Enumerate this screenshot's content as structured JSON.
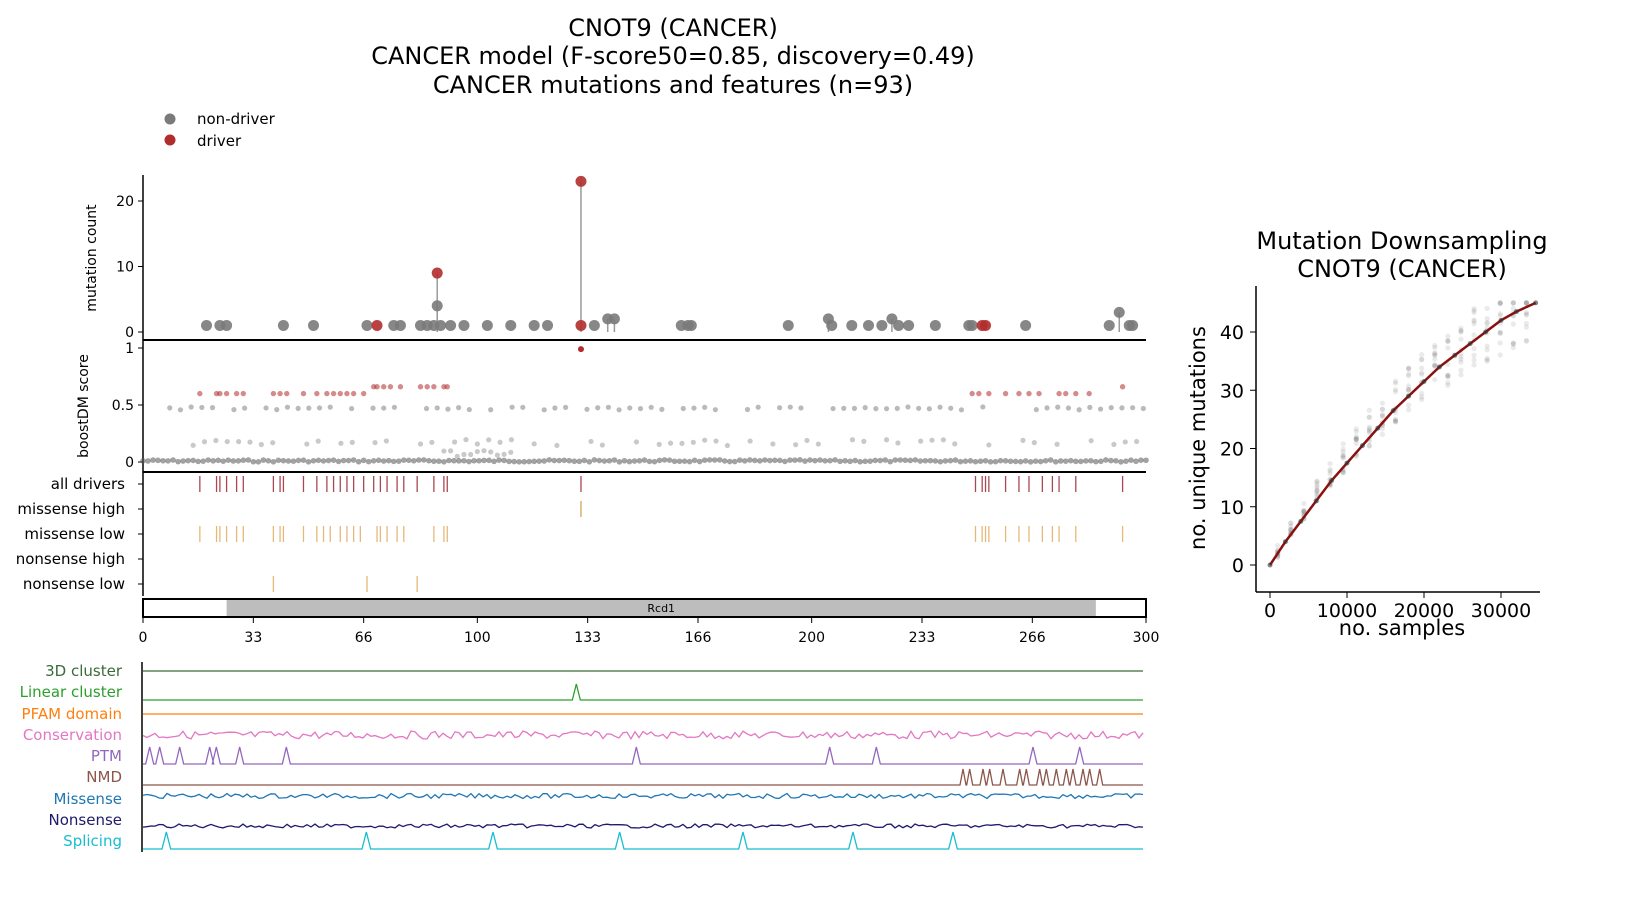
{
  "title": {
    "line1": "CNOT9 (CANCER)",
    "line2": "CANCER model (F-score50=0.85, discovery=0.49)",
    "line3": "CANCER mutations and features (n=93)"
  },
  "legend": {
    "items": [
      {
        "label": "non-driver",
        "color": "#7a7a7a"
      },
      {
        "label": "driver",
        "color": "#b22c2c"
      }
    ]
  },
  "colors": {
    "non_driver": "#7a7a7a",
    "driver": "#b22c2c",
    "stem": "#9a9a9a",
    "driver_tick": "#a8494f",
    "missense_high": "#d4a35e",
    "missense_low": "#e6b87a",
    "nonsense_low": "#e6b87a",
    "domain_fill": "#bdbdbd",
    "downsample_line": "#8b1010"
  },
  "chart_data": [
    {
      "type": "scatter",
      "name": "mutation-lollipop",
      "ylabel": "mutation count",
      "xlim": [
        0,
        300
      ],
      "ylim": [
        0,
        24
      ],
      "yticks": [
        0,
        10,
        20
      ],
      "points": [
        {
          "x": 19,
          "y": 1,
          "driver": false
        },
        {
          "x": 23,
          "y": 1,
          "driver": false
        },
        {
          "x": 25,
          "y": 1,
          "driver": false
        },
        {
          "x": 42,
          "y": 1,
          "driver": false
        },
        {
          "x": 51,
          "y": 1,
          "driver": false
        },
        {
          "x": 67,
          "y": 1,
          "driver": false
        },
        {
          "x": 70,
          "y": 1,
          "driver": true
        },
        {
          "x": 75,
          "y": 1,
          "driver": false
        },
        {
          "x": 77,
          "y": 1,
          "driver": false
        },
        {
          "x": 83,
          "y": 1,
          "driver": false
        },
        {
          "x": 85,
          "y": 1,
          "driver": false
        },
        {
          "x": 87,
          "y": 1,
          "driver": false
        },
        {
          "x": 88,
          "y": 9,
          "driver": true
        },
        {
          "x": 88,
          "y": 4,
          "driver": false
        },
        {
          "x": 89,
          "y": 1,
          "driver": false
        },
        {
          "x": 92,
          "y": 1,
          "driver": false
        },
        {
          "x": 96,
          "y": 1,
          "driver": false
        },
        {
          "x": 103,
          "y": 1,
          "driver": false
        },
        {
          "x": 110,
          "y": 1,
          "driver": false
        },
        {
          "x": 117,
          "y": 1,
          "driver": false
        },
        {
          "x": 121,
          "y": 1,
          "driver": false
        },
        {
          "x": 131,
          "y": 23,
          "driver": true
        },
        {
          "x": 131,
          "y": 1,
          "driver": true
        },
        {
          "x": 135,
          "y": 1,
          "driver": false
        },
        {
          "x": 139,
          "y": 2,
          "driver": false
        },
        {
          "x": 141,
          "y": 2,
          "driver": false
        },
        {
          "x": 161,
          "y": 1,
          "driver": false
        },
        {
          "x": 163,
          "y": 1,
          "driver": false
        },
        {
          "x": 164,
          "y": 1,
          "driver": false
        },
        {
          "x": 193,
          "y": 1,
          "driver": false
        },
        {
          "x": 205,
          "y": 2,
          "driver": false
        },
        {
          "x": 206,
          "y": 1,
          "driver": false
        },
        {
          "x": 212,
          "y": 1,
          "driver": false
        },
        {
          "x": 217,
          "y": 1,
          "driver": false
        },
        {
          "x": 221,
          "y": 1,
          "driver": false
        },
        {
          "x": 224,
          "y": 2,
          "driver": false
        },
        {
          "x": 226,
          "y": 1,
          "driver": false
        },
        {
          "x": 229,
          "y": 1,
          "driver": false
        },
        {
          "x": 237,
          "y": 1,
          "driver": false
        },
        {
          "x": 247,
          "y": 1,
          "driver": false
        },
        {
          "x": 248,
          "y": 1,
          "driver": false
        },
        {
          "x": 251,
          "y": 1,
          "driver": true
        },
        {
          "x": 252,
          "y": 1,
          "driver": true
        },
        {
          "x": 264,
          "y": 1,
          "driver": false
        },
        {
          "x": 289,
          "y": 1,
          "driver": false
        },
        {
          "x": 292,
          "y": 3,
          "driver": false
        },
        {
          "x": 295,
          "y": 1,
          "driver": false
        },
        {
          "x": 296,
          "y": 1,
          "driver": false
        }
      ]
    },
    {
      "type": "scatter",
      "name": "boostdm-score",
      "ylabel": "boostDM score",
      "xlim": [
        0,
        300
      ],
      "ylim": [
        0,
        1
      ],
      "yticks": [
        "0",
        "0.5",
        "1"
      ],
      "driver_scores_x": [
        17,
        22,
        23,
        25,
        28,
        30,
        39,
        41,
        43,
        48,
        52,
        55,
        57,
        59,
        61,
        63,
        66,
        69,
        70,
        72,
        74,
        77,
        83,
        85,
        87,
        90,
        91,
        248,
        250,
        253,
        258,
        262,
        265,
        268,
        274,
        276,
        279,
        283,
        293
      ],
      "driver_scores_y": [
        0.6,
        0.6,
        0.6,
        0.6,
        0.6,
        0.6,
        0.6,
        0.6,
        0.6,
        0.6,
        0.6,
        0.6,
        0.6,
        0.6,
        0.6,
        0.6,
        0.6,
        0.66,
        0.66,
        0.66,
        0.66,
        0.66,
        0.66,
        0.66,
        0.66,
        0.66,
        0.66,
        0.6,
        0.6,
        0.6,
        0.6,
        0.6,
        0.6,
        0.6,
        0.6,
        0.6,
        0.6,
        0.6,
        0.66
      ],
      "top_driver": {
        "x": 131,
        "y": 0.99
      },
      "nondriver_bands": [
        0.01,
        0.17,
        0.47
      ]
    },
    {
      "type": "table",
      "name": "driver-feature-ticks",
      "rows": [
        {
          "label": "all drivers",
          "positions": [
            17,
            22,
            23,
            25,
            28,
            30,
            39,
            41,
            42,
            48,
            52,
            55,
            57,
            59,
            61,
            63,
            66,
            69,
            71,
            73,
            76,
            78,
            82,
            87,
            90,
            91,
            131,
            249,
            251,
            252,
            253,
            258,
            262,
            265,
            269,
            272,
            274,
            279,
            293
          ]
        },
        {
          "label": "missense high",
          "positions": [
            131
          ]
        },
        {
          "label": "missense low",
          "positions": [
            17,
            22,
            23,
            25,
            28,
            30,
            39,
            41,
            42,
            48,
            52,
            54,
            56,
            59,
            61,
            63,
            65,
            70,
            71,
            73,
            76,
            78,
            87,
            90,
            91,
            249,
            251,
            252,
            253,
            258,
            262,
            265,
            269,
            272,
            274,
            279,
            293
          ]
        },
        {
          "label": "nonsense high",
          "positions": []
        },
        {
          "label": "nonsense low",
          "positions": [
            39,
            67,
            82
          ]
        }
      ]
    },
    {
      "type": "bar",
      "name": "protein-domain",
      "domains": [
        {
          "label": "Rcd1",
          "start": 25,
          "end": 285
        }
      ],
      "xticks": [
        "0",
        "33",
        "66",
        "100",
        "133",
        "166",
        "200",
        "233",
        "266",
        "300"
      ],
      "xlim": [
        0,
        300
      ]
    },
    {
      "type": "line",
      "name": "feature-tracks",
      "series": [
        {
          "name": "3D cluster",
          "color": "#3a6b3a"
        },
        {
          "name": "Linear cluster",
          "color": "#2ca02c"
        },
        {
          "name": "PFAM domain",
          "color": "#ff7f0e"
        },
        {
          "name": "Conservation",
          "color": "#e377c2"
        },
        {
          "name": "PTM",
          "color": "#9467bd"
        },
        {
          "name": "NMD",
          "color": "#8c564b"
        },
        {
          "name": "Missense",
          "color": "#1f77b4"
        },
        {
          "name": "Nonsense",
          "color": "#1f1a6b"
        },
        {
          "name": "Splicing",
          "color": "#17becf"
        }
      ],
      "linear_cluster_peaks": [
        130
      ],
      "ptm_peaks": [
        2,
        5,
        11,
        20,
        22,
        29,
        43,
        148,
        206,
        220,
        267,
        281
      ],
      "nmd_peaks": [
        246,
        248,
        252,
        254,
        258,
        263,
        265,
        269,
        271,
        274,
        277,
        279,
        282,
        284,
        287
      ],
      "splicing_peaks": [
        7,
        67,
        105,
        143,
        180,
        213,
        243
      ]
    },
    {
      "type": "line",
      "name": "mutation-downsampling",
      "title": "Mutation Downsampling\nCNOT9 (CANCER)",
      "xlabel": "no. samples",
      "ylabel": "no. unique mutations",
      "xlim": [
        0,
        34500
      ],
      "ylim": [
        0,
        46
      ],
      "xticks": [
        "0",
        "10000",
        "20000",
        "30000"
      ],
      "yticks": [
        "0",
        "10",
        "20",
        "30",
        "40"
      ],
      "x": [
        0,
        2000,
        4000,
        6000,
        8000,
        10000,
        12000,
        14000,
        16000,
        18000,
        20000,
        22000,
        24000,
        26000,
        28000,
        30000,
        32000,
        34500
      ],
      "y": [
        0,
        4,
        7.5,
        11,
        14.5,
        17.5,
        20.5,
        23.5,
        26.5,
        29,
        31.5,
        34,
        36,
        38,
        40,
        42,
        43.5,
        45
      ]
    }
  ]
}
